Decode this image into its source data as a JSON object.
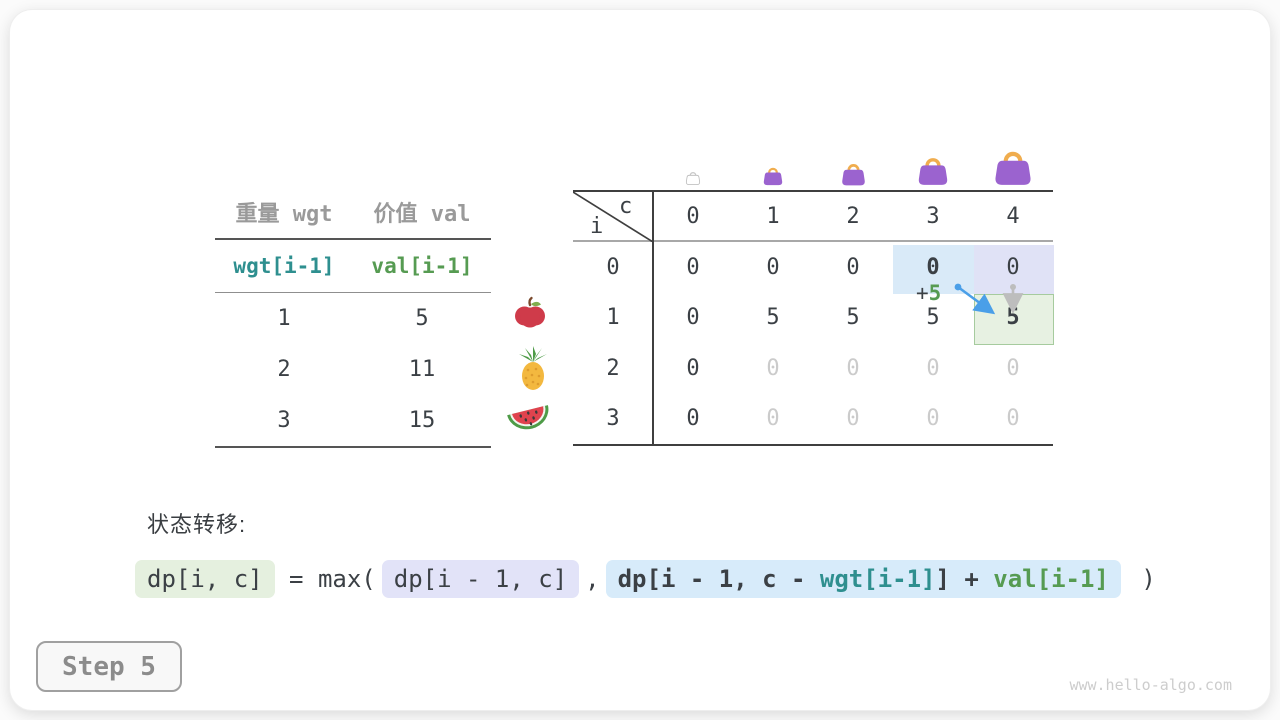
{
  "items_table": {
    "col_headers": [
      "重量 wgt",
      "价值 val"
    ],
    "index_row": [
      "wgt[i-1]",
      "val[i-1]"
    ],
    "rows": [
      [
        "1",
        "5"
      ],
      [
        "2",
        "11"
      ],
      [
        "3",
        "15"
      ]
    ],
    "row_icons": [
      "apple-icon",
      "pineapple-icon",
      "watermelon-icon"
    ]
  },
  "dp_table": {
    "corner": {
      "col_label": "c",
      "row_label": "i"
    },
    "capacity_icons": [
      "bag-empty",
      "bag-small",
      "bag-medium",
      "bag-large",
      "bag-xlarge"
    ],
    "col_headers": [
      "0",
      "1",
      "2",
      "3",
      "4"
    ],
    "row_headers": [
      "0",
      "1",
      "2",
      "3"
    ],
    "rows": [
      [
        "0",
        "0",
        "0",
        "0",
        "0"
      ],
      [
        "0",
        "5",
        "5",
        "5",
        "5"
      ],
      [
        "0",
        "0",
        "0",
        "0",
        "0"
      ],
      [
        "0",
        "0",
        "0",
        "0",
        "0"
      ]
    ],
    "cell_states": [
      [
        "n",
        "n",
        "n",
        "b",
        "n"
      ],
      [
        "n",
        "n",
        "n",
        "n",
        "b"
      ],
      [
        "n",
        "m",
        "m",
        "m",
        "m"
      ],
      [
        "n",
        "m",
        "m",
        "m",
        "m"
      ]
    ],
    "annotation": {
      "plus": "+",
      "value": "5"
    }
  },
  "transition": {
    "label": "状态转移:",
    "formula": {
      "lhs": "dp[i, c]",
      "eq": " = ",
      "max_open": "max(",
      "arg1": "dp[i - 1, c]",
      "comma": ",",
      "arg2_parts": [
        {
          "text": "dp[i - 1, c - ",
          "color": "dark"
        },
        {
          "text": "wgt[i-1]",
          "color": "teal"
        },
        {
          "text": "] + ",
          "color": "dark"
        },
        {
          "text": "val[i-1]",
          "color": "green"
        }
      ],
      "close": " )"
    }
  },
  "step_label": "Step 5",
  "watermark": "www.hello-algo.com",
  "colors": {
    "dark": "#3b4045",
    "gray_text": "#9a9a9a",
    "muted": "#cbcbcb",
    "teal": "#2e8f8f",
    "green": "#569b52",
    "blue_arrow": "#4a9fe8",
    "gray_arrow": "#bdbdbd",
    "hl_blue": "#d9eaf8",
    "hl_lav": "#e0e2f6",
    "hl_green": "#e7f1e2",
    "hl_green_border": "#a6cb9e",
    "box_green": "#e5f0df",
    "box_lav": "#e2e3f8",
    "box_blue": "#d7ebfa",
    "bag_purple": "#9b63cf",
    "bag_handle": "#f0ad4e",
    "line_dark": "#3f3f3f",
    "line_light": "#a8a8a8"
  }
}
